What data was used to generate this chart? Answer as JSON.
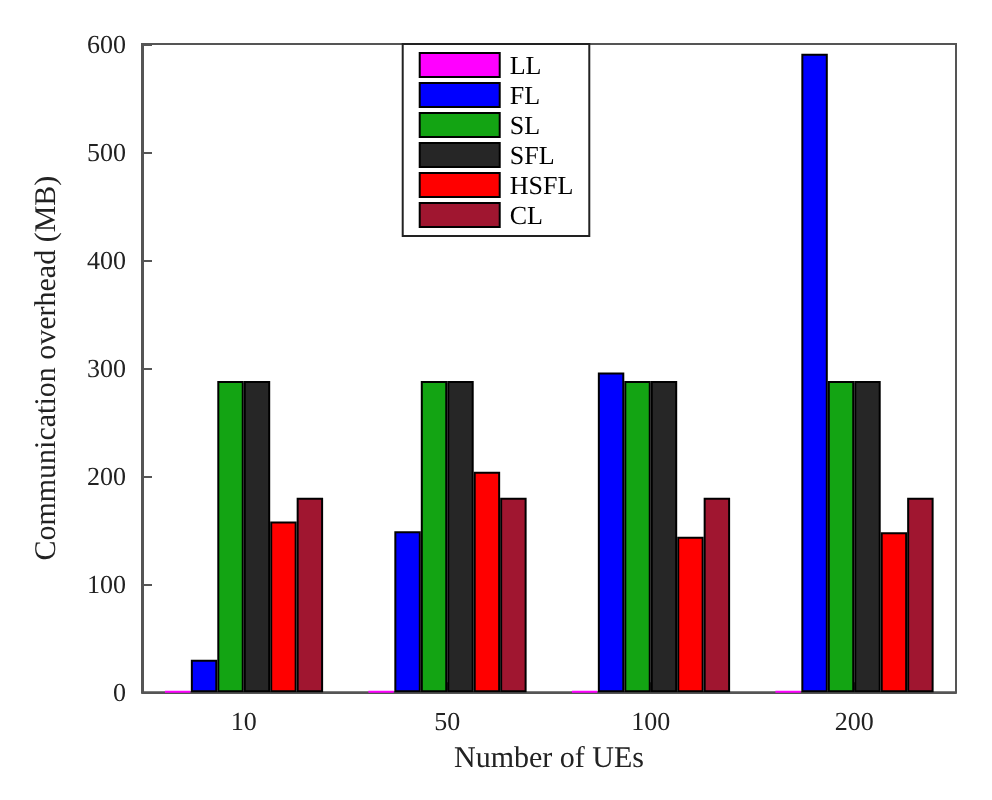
{
  "chart_data": {
    "type": "bar",
    "xlabel": "Number of UEs",
    "ylabel": "Communication overhead (MB)",
    "categories": [
      "10",
      "50",
      "100",
      "200"
    ],
    "series": [
      {
        "name": "LL",
        "color": "#ff00ff",
        "values": [
          1,
          1,
          1,
          1
        ]
      },
      {
        "name": "FL",
        "color": "#0000ff",
        "values": [
          30,
          149,
          296,
          591
        ]
      },
      {
        "name": "SL",
        "color": "#13a413",
        "values": [
          288,
          288,
          288,
          288
        ]
      },
      {
        "name": "SFL",
        "color": "#262626",
        "values": [
          288,
          288,
          288,
          288
        ]
      },
      {
        "name": "HSFL",
        "color": "#ff0000",
        "values": [
          158,
          204,
          144,
          148
        ]
      },
      {
        "name": "CL",
        "color": "#a01630",
        "values": [
          180,
          180,
          180,
          180
        ]
      }
    ],
    "ylim": [
      0,
      600
    ],
    "yticks": [
      0,
      100,
      200,
      300,
      400,
      500,
      600
    ],
    "grid": false,
    "legend": "top"
  }
}
